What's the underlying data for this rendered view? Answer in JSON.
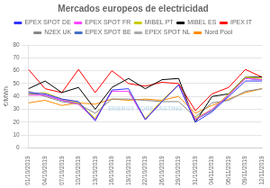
{
  "chart_data": {
    "type": "line",
    "title": "Mercados europeos de electricidad",
    "ylabel": "€/MWh",
    "categories": [
      "01/10/2019",
      "04/10/2019",
      "07/10/2019",
      "10/10/2019",
      "13/10/2019",
      "16/10/2019",
      "19/10/2019",
      "22/10/2019",
      "26/10/2019",
      "29/10/2019",
      "31/10/2019",
      "04/11/2019",
      "06/11/2019",
      "09/11/2019",
      "12/11/2019"
    ],
    "series": [
      {
        "name": "EPEX SPOT DE",
        "color": "#3333FF",
        "values": [
          43,
          42,
          38,
          36,
          21,
          45,
          46,
          22,
          36,
          49,
          20,
          28,
          40,
          52,
          52
        ]
      },
      {
        "name": "EPEX SPOT FR",
        "color": "#FF44FF",
        "values": [
          41,
          41,
          37,
          34,
          22,
          44,
          44,
          22,
          36,
          49,
          22,
          30,
          41,
          54,
          53
        ]
      },
      {
        "name": "MIBEL PT",
        "color": "#CCCC00",
        "values": [
          42,
          43,
          38,
          35,
          23,
          44,
          44,
          23,
          37,
          49,
          23,
          30,
          42,
          55,
          54
        ]
      },
      {
        "name": "MIBEL ES",
        "color": "#000000",
        "values": [
          46,
          52,
          43,
          47,
          30,
          47,
          54,
          46,
          53,
          54,
          20,
          40,
          42,
          55,
          55
        ]
      },
      {
        "name": "IPEX IT",
        "color": "#FF0000",
        "values": [
          61,
          46,
          43,
          61,
          43,
          60,
          50,
          48,
          51,
          50,
          29,
          42,
          47,
          61,
          55
        ]
      },
      {
        "name": "N2EX UK",
        "color": "#888888",
        "values": [
          44,
          40,
          36,
          34,
          27,
          38,
          38,
          37,
          36,
          36,
          24,
          35,
          37,
          44,
          46
        ]
      },
      {
        "name": "EPEX SPOT BE",
        "color": "#4472C4",
        "values": [
          42,
          41,
          37,
          35,
          22,
          44,
          44,
          22,
          36,
          49,
          22,
          29,
          41,
          54,
          53
        ]
      },
      {
        "name": "EPEX SPOT NL",
        "color": "#AAAAAA",
        "values": [
          42,
          41,
          37,
          34,
          22,
          44,
          44,
          22,
          36,
          49,
          22,
          29,
          41,
          54,
          53
        ]
      },
      {
        "name": "Nord Pool",
        "color": "#FF8C00",
        "values": [
          35,
          37,
          33,
          35,
          34,
          38,
          37,
          38,
          37,
          40,
          27,
          33,
          38,
          43,
          46
        ]
      }
    ],
    "annotations": [
      "ENERGY FORECASTING"
    ],
    "ylim": [
      0,
      80
    ],
    "yticks": [
      0,
      10,
      20,
      30,
      40,
      50,
      60,
      70,
      80
    ],
    "grid": "y",
    "legend": "top"
  }
}
